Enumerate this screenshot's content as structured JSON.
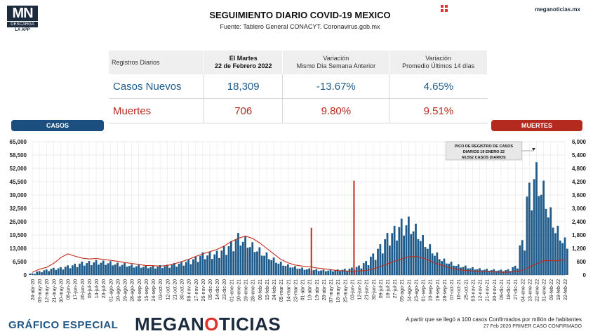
{
  "header": {
    "logo_mark": "MN",
    "logo_line1": "DESCARGA",
    "logo_line2": "LA APP",
    "title": "SEGUIMIENTO DIARIO COVID-19 MEXICO",
    "subtitle": "Fuente: Tablero General CONACYT. Coronavirus.gob.mx",
    "site": "meganoticias.mx"
  },
  "stats_table": {
    "col0": "Registros Diarios",
    "col1_line1": "El Martes",
    "col1_line2": "22 de Febrero 2022",
    "col2_line1": "Variación",
    "col2_line2": "Mismo Día Semana Anterior",
    "col3_line1": "Variación",
    "col3_line2": "Promedio Últimos 14 días",
    "rows": [
      {
        "label": "Casos Nuevos",
        "value": "18,309",
        "var_week": "-13.67%",
        "var_14d": "4.65%"
      },
      {
        "label": "Muertes",
        "value": "706",
        "var_week": "9.80%",
        "var_14d": "9.51%"
      }
    ]
  },
  "labels": {
    "casos": "CASOS",
    "muertes": "MUERTES"
  },
  "chart_data": {
    "type": "bar",
    "left_axis": {
      "name": "CASOS",
      "ticks": [
        0,
        6500,
        13000,
        19500,
        26000,
        32500,
        39000,
        45500,
        52000,
        58500,
        65000
      ],
      "tick_labels": [
        "0",
        "6,500",
        "13,000",
        "19,500",
        "26,000",
        "32,500",
        "39,000",
        "45,500",
        "52,000",
        "58,500",
        "65,000"
      ],
      "range": [
        0,
        65000
      ]
    },
    "right_axis": {
      "name": "MUERTES",
      "ticks": [
        0,
        600,
        1200,
        1800,
        2400,
        3000,
        3600,
        4200,
        4800,
        5400,
        6000
      ],
      "tick_labels": [
        "0",
        "600",
        "1,200",
        "1,800",
        "2,400",
        "3,000",
        "3,600",
        "4,200",
        "4,800",
        "5,400",
        "6,000"
      ],
      "range": [
        0,
        6000
      ]
    },
    "x_labels": [
      "24-abr-20",
      "03-may-20",
      "12-may-20",
      "21-may-20",
      "30-may-20",
      "08-jun-20",
      "17-jun-20",
      "26-jun-20",
      "05-jul-20",
      "14-jul-20",
      "23-jul-20",
      "01-ago-20",
      "10-ago-20",
      "19-ago-20",
      "28-ago-20",
      "06-sep-20",
      "15-sep-20",
      "24-sep-20",
      "03-oct-20",
      "12-oct-20",
      "21-oct-20",
      "30-oct-20",
      "08-nov-20",
      "17-nov-20",
      "26-nov-20",
      "05-dic-20",
      "14-dic-20",
      "23-dic-20",
      "01-ene-21",
      "10-ene-21",
      "19-ene-21",
      "28-ene-21",
      "06-feb-21",
      "15-feb-21",
      "24-feb-21",
      "05-mar-21",
      "14-mar-21",
      "23-mar-21",
      "01-abr-21",
      "10-abr-21",
      "19-abr-21",
      "28-abr-21",
      "07-may-21",
      "16-may-21",
      "25-may-21",
      "03-jun-21",
      "12-jun-21",
      "21-jun-21",
      "30-jun-21",
      "09-jul-21",
      "18-jul-21",
      "27-jul-21",
      "05-ago-21",
      "14-ago-21",
      "23-ago-21",
      "01-sep-21",
      "10-sep-21",
      "19-sep-21",
      "28-sep-21",
      "07-oct-21",
      "16-oct-21",
      "25-oct-21",
      "03-nov-21",
      "12-nov-21",
      "21-nov-21",
      "30-nov-21",
      "09-dic-21",
      "18-dic-21",
      "27-dic-21",
      "04-ene-22",
      "13-ene-22",
      "22-ene-22",
      "31-ene-22",
      "09-feb-22",
      "18-feb-22",
      "22-feb-22"
    ],
    "casos_values": [
      800,
      1900,
      2700,
      3500,
      3800,
      4700,
      5500,
      6500,
      6800,
      7200,
      7000,
      6700,
      6000,
      5800,
      5200,
      5000,
      4700,
      4500,
      4800,
      5000,
      5800,
      6500,
      7500,
      9000,
      11000,
      11200,
      11800,
      14000,
      16500,
      20500,
      19000,
      16000,
      13500,
      11000,
      8500,
      6500,
      5200,
      4300,
      3600,
      3200,
      2800,
      2600,
      2500,
      2700,
      3000,
      3600,
      4600,
      6800,
      10500,
      15000,
      20500,
      24000,
      27500,
      28500,
      25000,
      19500,
      15000,
      11000,
      8000,
      6500,
      5200,
      4600,
      3800,
      3300,
      3000,
      2800,
      2600,
      2800,
      4500,
      17000,
      45000,
      55000,
      46000,
      33000,
      24000,
      18309
    ],
    "muertes_values": [
      120,
      260,
      340,
      520,
      780,
      950,
      850,
      760,
      720,
      740,
      700,
      660,
      620,
      560,
      520,
      470,
      430,
      420,
      400,
      430,
      500,
      600,
      700,
      830,
      950,
      1050,
      1150,
      1300,
      1500,
      1650,
      1750,
      1650,
      1450,
      1200,
      950,
      700,
      550,
      450,
      400,
      380,
      320,
      280,
      240,
      200,
      180,
      170,
      180,
      200,
      270,
      380,
      500,
      620,
      720,
      820,
      830,
      760,
      640,
      500,
      400,
      300,
      240,
      200,
      180,
      160,
      150,
      140,
      130,
      130,
      150,
      200,
      350,
      500,
      640,
      650,
      640,
      706
    ],
    "spikes": [
      {
        "x_index": 39.3,
        "value": 23000
      },
      {
        "x_index": 45.3,
        "value": 46000
      }
    ],
    "annotation": {
      "text_line1": "PICO DE REGISTRO DE CASOS",
      "text_line2": "DIARIOS 19 ENERO 22",
      "text_line3": "60,552 CASOS DIARIOS",
      "x_index": 70.6,
      "value": 60552
    },
    "colors": {
      "casos": "#1f5b8a",
      "muertes": "#c22b1c",
      "axis_text": "#222222",
      "grid": "#d8d8d8"
    },
    "grid": true
  },
  "footer": {
    "left_text": "GRÁFICO ESPECIAL",
    "brand_a": "MEGAN",
    "brand_b": "O",
    "brand_c": "TICIAS",
    "note1": "A partir que se llegó a 100 casos Confirmados por millón de habitantes",
    "note2": "27 Feb 2020 PRIMER CASO CONFIRMADO"
  }
}
